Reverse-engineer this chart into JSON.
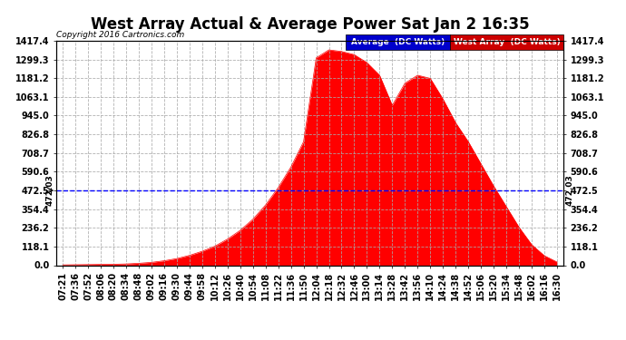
{
  "title": "West Array Actual & Average Power Sat Jan 2 16:35",
  "copyright": "Copyright 2016 Cartronics.com",
  "hline_y": 472.03,
  "hline_label": "472.03",
  "ymin": 0.0,
  "ymax": 1417.4,
  "ytick_values": [
    0.0,
    118.1,
    236.2,
    354.4,
    472.5,
    590.6,
    708.7,
    826.8,
    945.0,
    1063.1,
    1181.2,
    1299.3,
    1417.4
  ],
  "ytick_labels": [
    "0.0",
    "118.1",
    "236.2",
    "354.4",
    "472.5",
    "590.6",
    "708.7",
    "826.8",
    "945.0",
    "1063.1",
    "1181.2",
    "1299.3",
    "1417.4"
  ],
  "background_color": "#ffffff",
  "plot_bg_color": "#ffffff",
  "grid_color": "#aaaaaa",
  "fill_color": "#ff0000",
  "hline_color": "#0000ff",
  "legend_avg_bg": "#0000cc",
  "legend_west_bg": "#cc0000",
  "legend_avg_text": "Average  (DC Watts)",
  "legend_west_text": "West Array  (DC Watts)",
  "title_fontsize": 12,
  "tick_fontsize": 7,
  "time_labels": [
    "07:21",
    "07:36",
    "07:52",
    "08:06",
    "08:20",
    "08:34",
    "08:48",
    "09:02",
    "09:16",
    "09:30",
    "09:44",
    "09:58",
    "10:12",
    "10:26",
    "10:40",
    "10:54",
    "11:08",
    "11:22",
    "11:36",
    "11:50",
    "12:04",
    "12:18",
    "12:32",
    "12:46",
    "13:00",
    "13:14",
    "13:28",
    "13:42",
    "13:56",
    "14:10",
    "14:24",
    "14:38",
    "14:52",
    "15:06",
    "15:20",
    "15:34",
    "15:48",
    "16:02",
    "16:16",
    "16:30"
  ],
  "values": [
    2,
    3,
    4,
    5,
    6,
    8,
    12,
    18,
    28,
    42,
    62,
    88,
    120,
    165,
    220,
    290,
    380,
    490,
    620,
    780,
    1310,
    1360,
    1350,
    1330,
    1280,
    1200,
    1010,
    1150,
    1200,
    1180,
    1050,
    900,
    780,
    640,
    500,
    370,
    240,
    130,
    60,
    20
  ]
}
